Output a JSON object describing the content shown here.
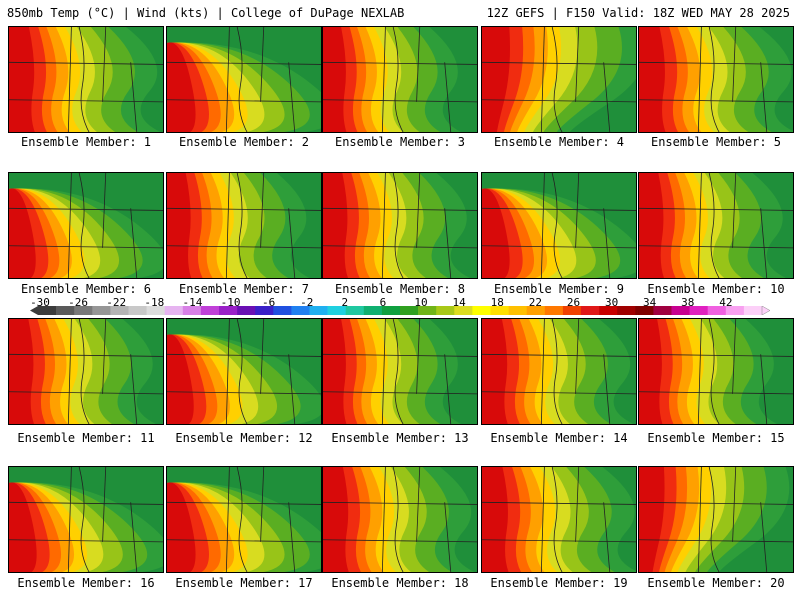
{
  "header": {
    "left": "850mb Temp (°C) | Wind (kts) | College of DuPage NEXLAB",
    "right": "12Z GEFS | F150 Valid: 18Z WED MAY 28 2025"
  },
  "members": [
    {
      "label": "Ensemble Member: 1",
      "hot": "left",
      "warmth": 0.75
    },
    {
      "label": "Ensemble Member: 2",
      "hot": "lower-left",
      "warmth": 0.65
    },
    {
      "label": "Ensemble Member: 3",
      "hot": "left",
      "warmth": 0.6
    },
    {
      "label": "Ensemble Member: 4",
      "hot": "upper-left",
      "warmth": 0.8
    },
    {
      "label": "Ensemble Member: 5",
      "hot": "left",
      "warmth": 0.8
    },
    {
      "label": "Ensemble Member: 6",
      "hot": "lower-left",
      "warmth": 0.55
    },
    {
      "label": "Ensemble Member: 7",
      "hot": "left",
      "warmth": 0.65
    },
    {
      "label": "Ensemble Member: 8",
      "hot": "left",
      "warmth": 0.7
    },
    {
      "label": "Ensemble Member: 9",
      "hot": "lower-left",
      "warmth": 0.6
    },
    {
      "label": "Ensemble Member: 10",
      "hot": "left",
      "warmth": 0.7
    },
    {
      "label": "Ensemble Member: 11",
      "hot": "left",
      "warmth": 0.7
    },
    {
      "label": "Ensemble Member: 12",
      "hot": "lower-left",
      "warmth": 0.55
    },
    {
      "label": "Ensemble Member: 13",
      "hot": "left",
      "warmth": 0.6
    },
    {
      "label": "Ensemble Member: 14",
      "hot": "left",
      "warmth": 0.75
    },
    {
      "label": "Ensemble Member: 15",
      "hot": "left",
      "warmth": 0.6
    },
    {
      "label": "Ensemble Member: 16",
      "hot": "lower-left",
      "warmth": 0.6
    },
    {
      "label": "Ensemble Member: 17",
      "hot": "lower-left",
      "warmth": 0.65
    },
    {
      "label": "Ensemble Member: 18",
      "hot": "left",
      "warmth": 0.75
    },
    {
      "label": "Ensemble Member: 19",
      "hot": "left",
      "warmth": 0.8
    },
    {
      "label": "Ensemble Member: 20",
      "hot": "upper-left",
      "warmth": 0.65
    }
  ],
  "colorbar": {
    "labels": [
      "-30",
      "-26",
      "-22",
      "-18",
      "-14",
      "-10",
      "-6",
      "-2",
      "2",
      "6",
      "10",
      "14",
      "18",
      "22",
      "26",
      "30",
      "34",
      "38",
      "42"
    ],
    "colors": [
      "#3c3c3c",
      "#5a5a5a",
      "#787878",
      "#969696",
      "#b4b4b4",
      "#c8c8c8",
      "#dcdcdc",
      "#e6b4f0",
      "#d880e6",
      "#c040d8",
      "#9a20c8",
      "#6a10b4",
      "#3a20c8",
      "#2050e0",
      "#2080f0",
      "#20b0f0",
      "#20d0e0",
      "#20c8a0",
      "#10b070",
      "#10a040",
      "#30a020",
      "#70b418",
      "#a8c818",
      "#dcdc20",
      "#ffff00",
      "#ffe000",
      "#ffc000",
      "#ffa000",
      "#ff7800",
      "#f04000",
      "#e01818",
      "#c80000",
      "#a00000",
      "#800000",
      "#a00040",
      "#c80090",
      "#e020c0",
      "#f060e0",
      "#f8a0f0",
      "#fcd0f8"
    ]
  }
}
